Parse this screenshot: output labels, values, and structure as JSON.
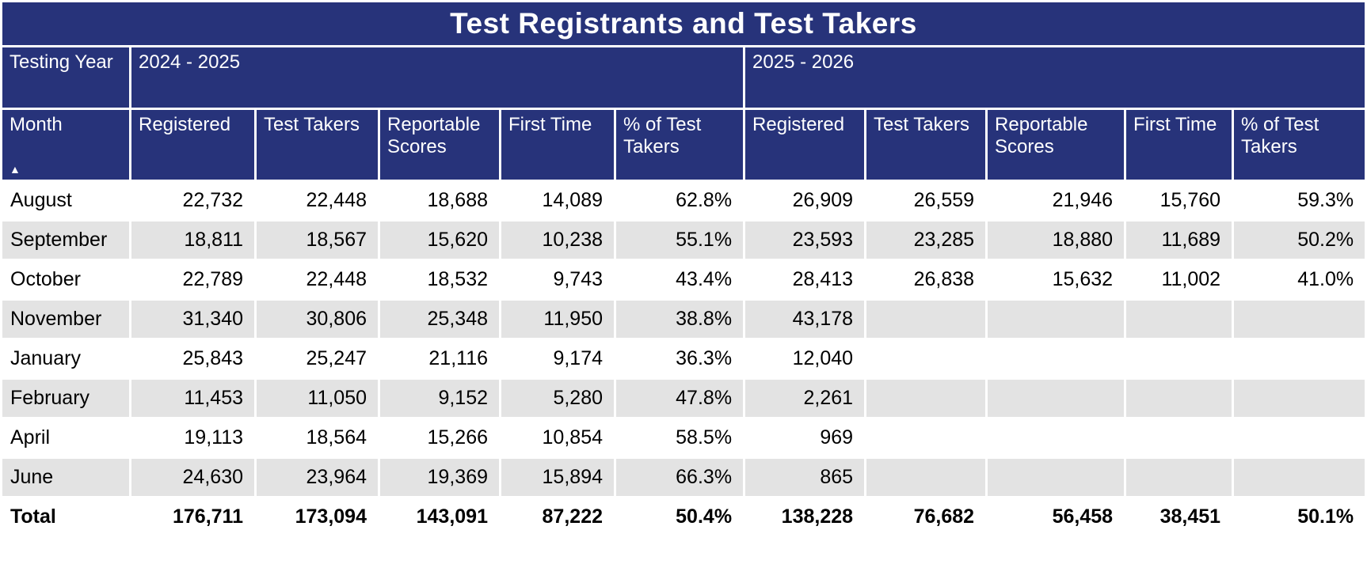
{
  "title": "Test Registrants and Test Takers",
  "colors": {
    "header_bg": "#27337a",
    "stripe_bg": "#e3e3e3",
    "header_text": "#ffffff",
    "body_text": "#000000"
  },
  "table": {
    "corner_label": "Testing Year",
    "month_label": "Month",
    "sort_icon": "▲",
    "groups": [
      {
        "label": "2024 - 2025",
        "columns": [
          "Registered",
          "Test Takers",
          "Reportable Scores",
          "First Time",
          "% of Test Takers"
        ]
      },
      {
        "label": "2025 - 2026",
        "columns": [
          "Registered",
          "Test Takers",
          "Reportable Scores",
          "First Time",
          "% of Test Takers"
        ]
      }
    ],
    "rows": [
      {
        "month": "August",
        "is_total": false,
        "values": [
          "22,732",
          "22,448",
          "18,688",
          "14,089",
          "62.8%",
          "26,909",
          "26,559",
          "21,946",
          "15,760",
          "59.3%"
        ]
      },
      {
        "month": "September",
        "is_total": false,
        "values": [
          "18,811",
          "18,567",
          "15,620",
          "10,238",
          "55.1%",
          "23,593",
          "23,285",
          "18,880",
          "11,689",
          "50.2%"
        ]
      },
      {
        "month": "October",
        "is_total": false,
        "values": [
          "22,789",
          "22,448",
          "18,532",
          "9,743",
          "43.4%",
          "28,413",
          "26,838",
          "15,632",
          "11,002",
          "41.0%"
        ]
      },
      {
        "month": "November",
        "is_total": false,
        "values": [
          "31,340",
          "30,806",
          "25,348",
          "11,950",
          "38.8%",
          "43,178",
          "",
          "",
          "",
          ""
        ]
      },
      {
        "month": "January",
        "is_total": false,
        "values": [
          "25,843",
          "25,247",
          "21,116",
          "9,174",
          "36.3%",
          "12,040",
          "",
          "",
          "",
          ""
        ]
      },
      {
        "month": "February",
        "is_total": false,
        "values": [
          "11,453",
          "11,050",
          "9,152",
          "5,280",
          "47.8%",
          "2,261",
          "",
          "",
          "",
          ""
        ]
      },
      {
        "month": "April",
        "is_total": false,
        "values": [
          "19,113",
          "18,564",
          "15,266",
          "10,854",
          "58.5%",
          "969",
          "",
          "",
          "",
          ""
        ]
      },
      {
        "month": "June",
        "is_total": false,
        "values": [
          "24,630",
          "23,964",
          "19,369",
          "15,894",
          "66.3%",
          "865",
          "",
          "",
          "",
          ""
        ]
      },
      {
        "month": "Total",
        "is_total": true,
        "values": [
          "176,711",
          "173,094",
          "143,091",
          "87,222",
          "50.4%",
          "138,228",
          "76,682",
          "56,458",
          "38,451",
          "50.1%"
        ]
      }
    ]
  },
  "chart_data": {
    "type": "table",
    "title": "Test Registrants and Test Takers",
    "row_header": "Month",
    "sort": "Month ascending",
    "column_groups": [
      "2024 - 2025",
      "2025 - 2026"
    ],
    "columns": [
      "Month",
      "2024-2025 Registered",
      "2024-2025 Test Takers",
      "2024-2025 Reportable Scores",
      "2024-2025 First Time",
      "2024-2025 % of Test Takers",
      "2025-2026 Registered",
      "2025-2026 Test Takers",
      "2025-2026 Reportable Scores",
      "2025-2026 First Time",
      "2025-2026 % of Test Takers"
    ],
    "rows": [
      [
        "August",
        22732,
        22448,
        18688,
        14089,
        62.8,
        26909,
        26559,
        21946,
        15760,
        59.3
      ],
      [
        "September",
        18811,
        18567,
        15620,
        10238,
        55.1,
        23593,
        23285,
        18880,
        11689,
        50.2
      ],
      [
        "October",
        22789,
        22448,
        18532,
        9743,
        43.4,
        28413,
        26838,
        15632,
        11002,
        41.0
      ],
      [
        "November",
        31340,
        30806,
        25348,
        11950,
        38.8,
        43178,
        null,
        null,
        null,
        null
      ],
      [
        "January",
        25843,
        25247,
        21116,
        9174,
        36.3,
        12040,
        null,
        null,
        null,
        null
      ],
      [
        "February",
        11453,
        11050,
        9152,
        5280,
        47.8,
        2261,
        null,
        null,
        null,
        null
      ],
      [
        "April",
        19113,
        18564,
        15266,
        10854,
        58.5,
        969,
        null,
        null,
        null,
        null
      ],
      [
        "June",
        24630,
        23964,
        19369,
        15894,
        66.3,
        865,
        null,
        null,
        null,
        null
      ],
      [
        "Total",
        176711,
        173094,
        143091,
        87222,
        50.4,
        138228,
        76682,
        56458,
        38451,
        50.1
      ]
    ]
  }
}
